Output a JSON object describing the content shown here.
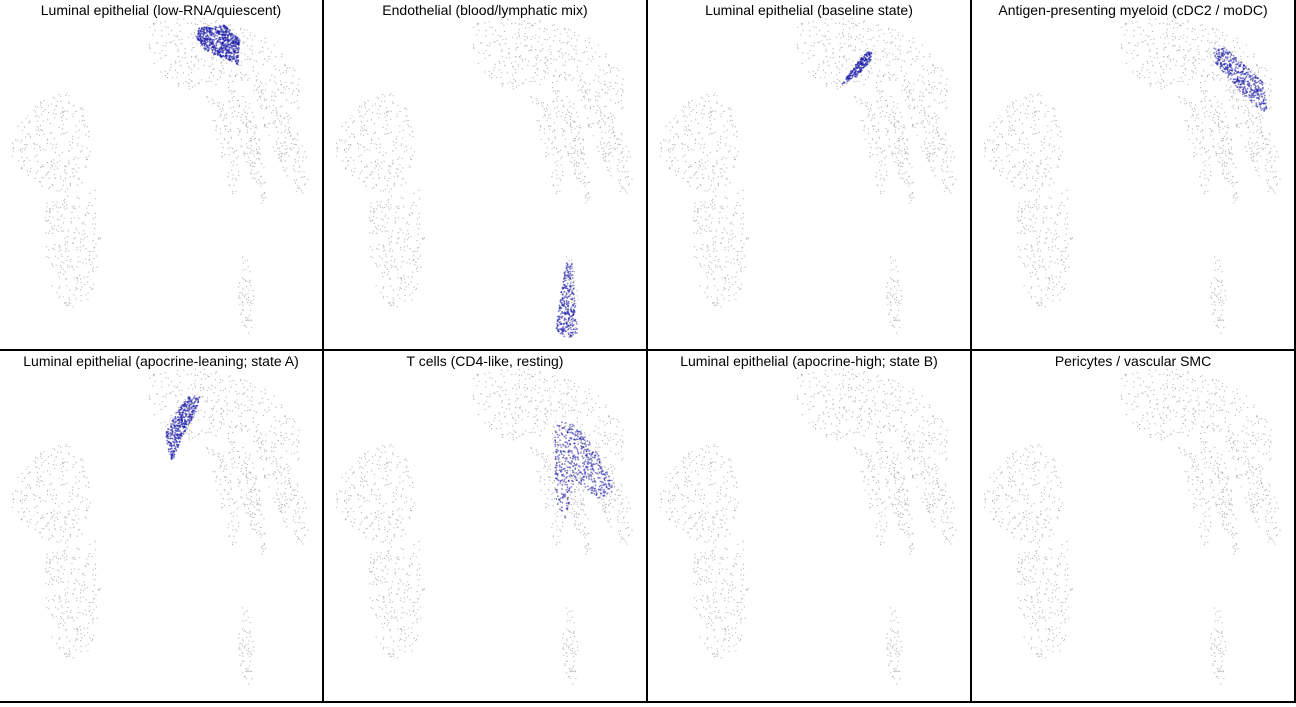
{
  "chart_data": [
    {
      "type": "scatter",
      "title": "Luminal epithelial (low-RNA/quiescent)",
      "background_color": "#b5b5b5",
      "highlight_color": "#1a1aa8"
    },
    {
      "type": "scatter",
      "title": "Endothelial (blood/lymphatic mix)",
      "background_color": "#b5b5b5",
      "highlight_color": "#1a1aa8"
    },
    {
      "type": "scatter",
      "title": "Luminal epithelial (baseline state)",
      "background_color": "#b5b5b5",
      "highlight_color": "#1a1aa8"
    },
    {
      "type": "scatter",
      "title": "Antigen-presenting myeloid (cDC2 / moDC)",
      "background_color": "#b5b5b5",
      "highlight_color": "#1a1aa8"
    },
    {
      "type": "scatter",
      "title": "Luminal epithelial (apocrine-leaning; state A)",
      "background_color": "#b5b5b5",
      "highlight_color": "#1a1aa8"
    },
    {
      "type": "scatter",
      "title": "T cells (CD4-like, resting)",
      "background_color": "#b5b5b5",
      "highlight_color": "#1a1aa8"
    },
    {
      "type": "scatter",
      "title": "Luminal epithelial (apocrine-high; state B)",
      "background_color": "#b5b5b5",
      "highlight_color": "#1a1aa8"
    },
    {
      "type": "scatter",
      "title": "Pericytes / vascular SMC",
      "background_color": "#b5b5b5",
      "highlight_color": "#1a1aa8"
    }
  ]
}
